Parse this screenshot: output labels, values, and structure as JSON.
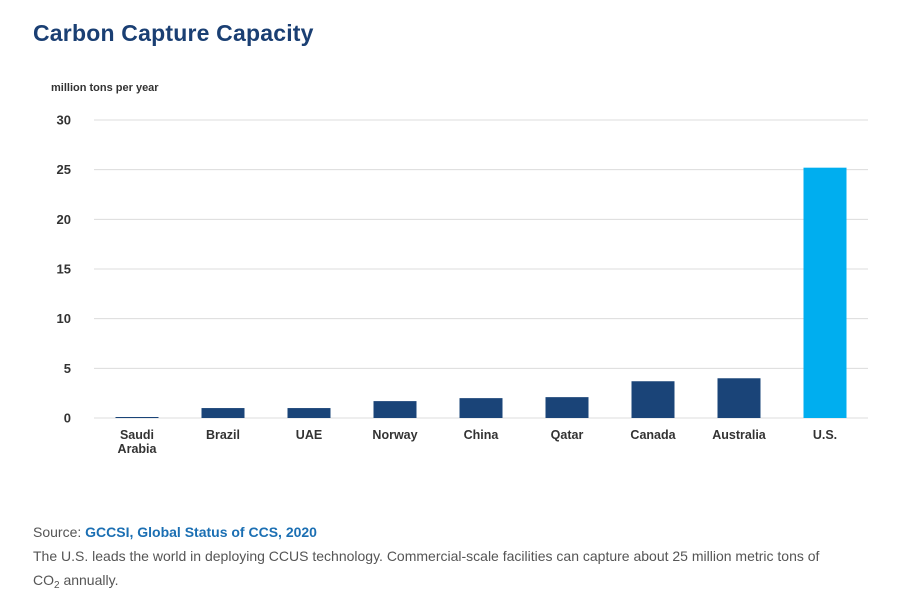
{
  "title": "Carbon Capture Capacity",
  "chart_data": {
    "type": "bar",
    "ylabel": "million tons per year",
    "ylim": [
      0,
      30
    ],
    "yticks": [
      0,
      5,
      10,
      15,
      20,
      25,
      30
    ],
    "categories": [
      "Saudi Arabia",
      "Brazil",
      "UAE",
      "Norway",
      "China",
      "Qatar",
      "Canada",
      "Australia",
      "U.S."
    ],
    "category_lines": [
      [
        "Saudi",
        "Arabia"
      ],
      [
        "Brazil"
      ],
      [
        "UAE"
      ],
      [
        "Norway"
      ],
      [
        "China"
      ],
      [
        "Qatar"
      ],
      [
        "Canada"
      ],
      [
        "Australia"
      ],
      [
        "U.S."
      ]
    ],
    "values": [
      0.1,
      1.0,
      1.0,
      1.7,
      2.0,
      2.1,
      3.7,
      4.0,
      25.2
    ],
    "highlight_index": 8,
    "grid": true,
    "colors": {
      "bar": "#1a4478",
      "highlight": "#00aeef",
      "grid": "#dcdcdc"
    }
  },
  "footer": {
    "source_prefix": "Source: ",
    "source_link": "GCCSI, Global Status of CCS, 2020",
    "caption_main": "The U.S. leads the world in deploying CCUS technology. Commercial-scale facilities can capture about 25 million metric tons of",
    "caption_co": "CO",
    "caption_sub": "2",
    "caption_end": " annually."
  }
}
